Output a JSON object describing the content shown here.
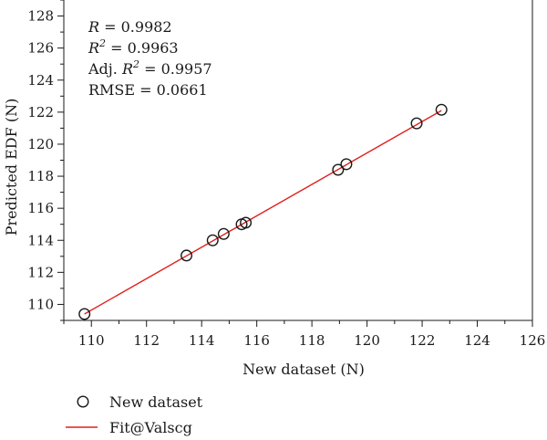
{
  "chart_data": {
    "type": "scatter",
    "xlabel": "New dataset (N)",
    "ylabel": "Predicted EDF (N)",
    "xlim": [
      109,
      126
    ],
    "ylim": [
      109,
      129
    ],
    "x_ticks": [
      110,
      112,
      114,
      116,
      118,
      120,
      122,
      124,
      126
    ],
    "y_ticks": [
      110,
      112,
      114,
      116,
      118,
      120,
      122,
      124,
      126,
      128
    ],
    "grid": false,
    "legend_position": "below",
    "series": [
      {
        "name": "New dataset",
        "kind": "scatter",
        "marker": "open-circle",
        "color": "#1a1a1a",
        "points": [
          {
            "x": 109.75,
            "y": 109.4
          },
          {
            "x": 113.45,
            "y": 113.05
          },
          {
            "x": 114.4,
            "y": 114.0
          },
          {
            "x": 114.8,
            "y": 114.4
          },
          {
            "x": 115.45,
            "y": 115.0
          },
          {
            "x": 115.6,
            "y": 115.1
          },
          {
            "x": 118.95,
            "y": 118.4
          },
          {
            "x": 119.25,
            "y": 118.75
          },
          {
            "x": 121.8,
            "y": 121.3
          },
          {
            "x": 122.7,
            "y": 122.15
          }
        ]
      },
      {
        "name": "Fit@Valscg",
        "kind": "line",
        "color": "#e0201b",
        "points": [
          {
            "x": 109.75,
            "y": 109.4
          },
          {
            "x": 122.7,
            "y": 122.1
          }
        ]
      }
    ],
    "stats": {
      "r": {
        "sym": "R",
        "val": " = 0.9982"
      },
      "r2": {
        "sym": "R",
        "sup": "2",
        "val": " = 0.9963"
      },
      "adj": {
        "pre": "Adj. ",
        "sym": "R",
        "sup": "2",
        "val": " = 0.9957"
      },
      "rmse": "RMSE = 0.0661"
    }
  }
}
